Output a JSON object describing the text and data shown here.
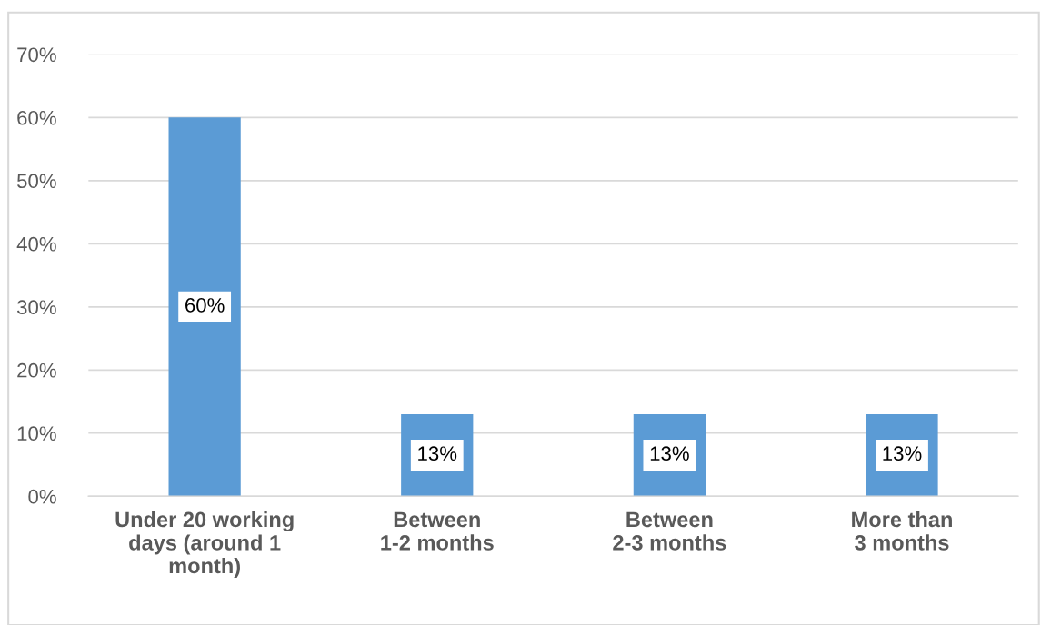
{
  "chart_data": {
    "type": "bar",
    "categories": [
      "Under 20 working\ndays (around 1\nmonth)",
      "Between\n1-2 months",
      "Between\n2-3 months",
      "More than\n3 months"
    ],
    "values": [
      60,
      13,
      13,
      13
    ],
    "color": "#5b9bd5",
    "value_labels": [
      "60%",
      "13%",
      "13%",
      "13%"
    ],
    "ylim": [
      0,
      70
    ],
    "yticks": [
      {
        "value": 0,
        "label": "0%"
      },
      {
        "value": 10,
        "label": "10%"
      },
      {
        "value": 20,
        "label": "20%"
      },
      {
        "value": 30,
        "label": "30%"
      },
      {
        "value": 40,
        "label": "40%"
      },
      {
        "value": 50,
        "label": "50%"
      },
      {
        "value": 60,
        "label": "60%"
      },
      {
        "value": 70,
        "label": "70%"
      }
    ],
    "grid": "y",
    "legend": false
  }
}
